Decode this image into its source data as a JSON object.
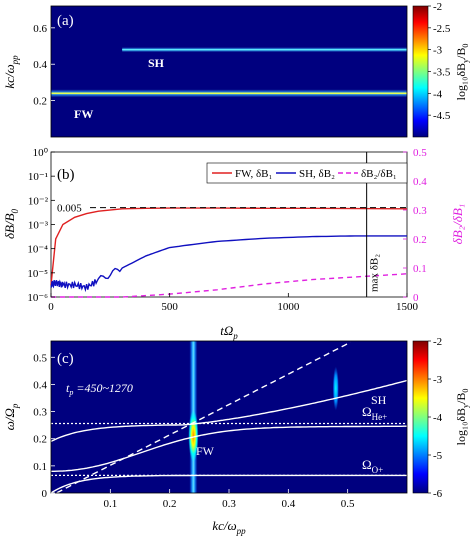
{
  "colorbar_colors": [
    "#00007f",
    "#0000ff",
    "#007fff",
    "#00ffff",
    "#7fff7f",
    "#ffff00",
    "#ff7f00",
    "#ff0000",
    "#7f0000"
  ],
  "chart_data": [
    {
      "type": "heatmap",
      "panel_label": "(a)",
      "xlim": [
        0,
        1500
      ],
      "ylim": [
        0,
        0.72
      ],
      "yticks": [
        "0.2",
        "0.4",
        "0.6"
      ],
      "ylabel": "kc/ω",
      "ylabel_sub": "pp",
      "colorbar": {
        "range": [
          -5,
          -2
        ],
        "ticks": [
          "-2",
          "-2.5",
          "-3",
          "-3.5",
          "-4",
          "-4.5"
        ],
        "label": "log₁₀δB",
        "label_sub1": "y",
        "label_mid": "/B",
        "label_sub2": "0"
      },
      "bands": [
        {
          "name": "FW",
          "k": 0.24,
          "t_start": 0,
          "t_end": 1500,
          "peak": -2.0
        },
        {
          "name": "SH",
          "k": 0.48,
          "t_start": 300,
          "t_end": 1500,
          "peak": -3.4
        }
      ],
      "annotations": [
        "FW",
        "SH"
      ]
    },
    {
      "type": "line",
      "panel_label": "(b)",
      "x": [
        0,
        20,
        50,
        100,
        150,
        200,
        300,
        400,
        500,
        700,
        900,
        1100,
        1300,
        1500
      ],
      "xlim": [
        0,
        1500
      ],
      "xticks": [
        "0",
        "500",
        "1000",
        "1500"
      ],
      "xlabel": "tΩ",
      "xlabel_sub": "p",
      "ylabel": "δB/B",
      "ylabel_sub": "0",
      "ylim_log": [
        -6,
        0
      ],
      "yticks_left": [
        "10⁰",
        "10⁻¹",
        "10⁻²",
        "10⁻³",
        "10⁻⁴",
        "10⁻⁵",
        "10⁻⁶"
      ],
      "y2label": "δB₂/δB₁",
      "y2lim": [
        0,
        0.5
      ],
      "y2ticks": [
        "0.5",
        "0.4",
        "0.3",
        "0.2",
        "0.1",
        "0"
      ],
      "series": [
        {
          "name": "FW, δB₁",
          "color": "#e02020",
          "dash": "",
          "log10_values": [
            -5.5,
            -3.6,
            -3.0,
            -2.7,
            -2.55,
            -2.45,
            -2.35,
            -2.33,
            -2.32,
            -2.32,
            -2.33,
            -2.33,
            -2.34,
            -2.35
          ]
        },
        {
          "name": "SH, δB₂",
          "color": "#1010c0",
          "dash": "",
          "log10_values": [
            -5.5,
            -5.4,
            -5.5,
            -5.5,
            -5.6,
            -5.3,
            -4.8,
            -4.3,
            -3.95,
            -3.7,
            -3.57,
            -3.5,
            -3.47,
            -3.47
          ]
        },
        {
          "name": "δB₂/δB₁",
          "color": "#e020e0",
          "dash": "5,4",
          "axis": "right",
          "values": [
            0.0,
            0.0,
            0.0,
            0.0,
            0.0,
            0.0,
            0.0,
            0.005,
            0.01,
            0.025,
            0.045,
            0.06,
            0.07,
            0.08
          ]
        }
      ],
      "reference_line": {
        "label": "0.005",
        "value": 0.005
      },
      "marker_line": {
        "label": "max δB₂",
        "t": 1330
      }
    },
    {
      "type": "heatmap",
      "panel_label": "(c)",
      "xlim": [
        0.0,
        0.6
      ],
      "xticks": [
        "0.1",
        "0.2",
        "0.3",
        "0.4",
        "0.5"
      ],
      "xlabel": "kc/ω",
      "xlabel_sub": "pp",
      "ylim": [
        0,
        0.56
      ],
      "yticks": [
        "0",
        "0.1",
        "0.2",
        "0.3",
        "0.4",
        "0.5"
      ],
      "ylabel": "ω/Ω",
      "ylabel_sub": "p",
      "time_window": "tΩ =450~1270",
      "time_window_sub": "p",
      "colorbar": {
        "range": [
          -6,
          -2
        ],
        "ticks": [
          "-2",
          "-3",
          "-4",
          "-5",
          "-6"
        ],
        "label": "log₁₀δB",
        "label_sub1": "y",
        "label_mid": "/B",
        "label_sub2": "0"
      },
      "resonances": [
        {
          "label": "Ω",
          "sub": "He+",
          "omega": 0.256
        },
        {
          "label": "Ω",
          "sub": "O+",
          "omega": 0.065
        }
      ],
      "annotations": [
        "FW",
        "SH"
      ],
      "wave_features": [
        {
          "name": "FW",
          "k": 0.24,
          "omega": 0.21
        },
        {
          "name": "SH",
          "k": 0.48,
          "omega": 0.385
        }
      ]
    }
  ]
}
